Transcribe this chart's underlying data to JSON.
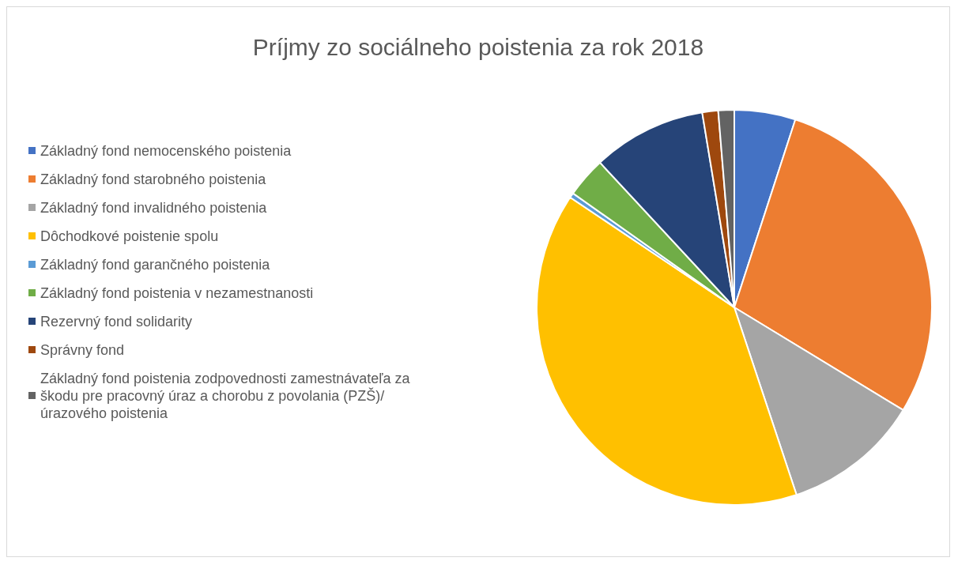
{
  "chart_data": {
    "type": "pie",
    "title": "Príjmy zo sociálneho poistenia za rok 2018",
    "categories": [
      "Základný fond nemocenského poistenia",
      "Základný fond starobného poistenia",
      "Základný fond invalidného poistenia",
      "Dôchodkové poistenie spolu",
      "Základný fond garančného poistenia",
      "Základný fond poistenia v nezamestnanosti",
      "Rezervný fond solidarity",
      "Správny fond",
      "Základný fond poistenia zodpovednosti zamestnávateľa za škodu pre pracovný úraz a chorobu z povolania (PZŠ)/ úrazového poistenia"
    ],
    "values": [
      5,
      28.7,
      11.2,
      39.5,
      0.4,
      3.3,
      9.3,
      1.3,
      1.3
    ],
    "colors": [
      "#4472c4",
      "#ed7d31",
      "#a5a5a5",
      "#ffc000",
      "#5b9bd5",
      "#70ad47",
      "#264478",
      "#9e480e",
      "#636363"
    ],
    "legend": "left"
  }
}
